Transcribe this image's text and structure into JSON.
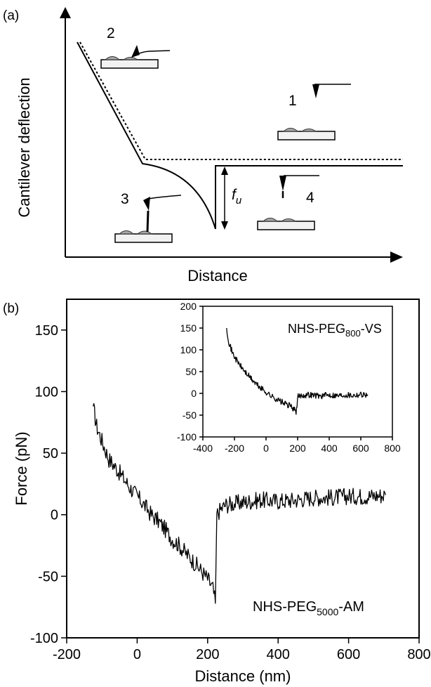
{
  "panel_a": {
    "label": "(a)",
    "ylabel": "Cantilever deflection",
    "xlabel": "Distance",
    "force_label": "f",
    "force_subscript": "u",
    "stages": [
      "1",
      "2",
      "3",
      "4"
    ]
  },
  "panel_b": {
    "label": "(b)"
  },
  "chart_data": [
    {
      "type": "line",
      "title": "",
      "xlabel": "Distance (nm)",
      "ylabel": "Force (pN)",
      "xlim": [
        -200,
        800
      ],
      "ylim": [
        -100,
        175
      ],
      "xticks": [
        "-200",
        "0",
        "200",
        "400",
        "600",
        "800"
      ],
      "yticks": [
        "-100",
        "-50",
        "0",
        "50",
        "100",
        "150"
      ],
      "annotation_main": "NHS-PEG",
      "annotation_sub": "5000",
      "annotation_end": "-AM",
      "series": [
        {
          "x": [
            -125,
            -115,
            -100,
            -80,
            -60,
            -40,
            -20,
            0,
            20,
            40,
            60,
            80,
            100,
            120,
            140,
            160,
            180,
            200,
            215,
            222,
            226,
            230,
            250,
            300,
            350,
            400,
            450,
            500,
            550,
            600,
            650,
            705
          ],
          "values": [
            88,
            72,
            60,
            45,
            38,
            30,
            22,
            15,
            8,
            0,
            -5,
            -12,
            -20,
            -25,
            -32,
            -38,
            -45,
            -52,
            -60,
            -72,
            0,
            2,
            8,
            10,
            12,
            11,
            12,
            14,
            14,
            15,
            15,
            16
          ]
        }
      ]
    },
    {
      "type": "line",
      "title": "",
      "xlabel": "",
      "ylabel": "",
      "xlim": [
        -400,
        800
      ],
      "ylim": [
        -100,
        200
      ],
      "xticks": [
        "-400",
        "-200",
        "0",
        "200",
        "400",
        "600",
        "800"
      ],
      "yticks": [
        "-100",
        "-50",
        "0",
        "50",
        "100",
        "150",
        "200"
      ],
      "annotation_main": "NHS-PEG",
      "annotation_sub": "800",
      "annotation_end": "-VS",
      "series": [
        {
          "x": [
            -250,
            -235,
            -215,
            -190,
            -160,
            -130,
            -100,
            -70,
            -40,
            0,
            40,
            80,
            120,
            160,
            190,
            196,
            200,
            230,
            280,
            350,
            400,
            450,
            500,
            550,
            600,
            645
          ],
          "values": [
            150,
            118,
            95,
            78,
            62,
            48,
            36,
            24,
            14,
            3,
            -8,
            -16,
            -24,
            -30,
            -42,
            -35,
            -8,
            -4,
            -3,
            -6,
            -3,
            -5,
            -3,
            -4,
            -2,
            -3
          ]
        }
      ]
    }
  ]
}
